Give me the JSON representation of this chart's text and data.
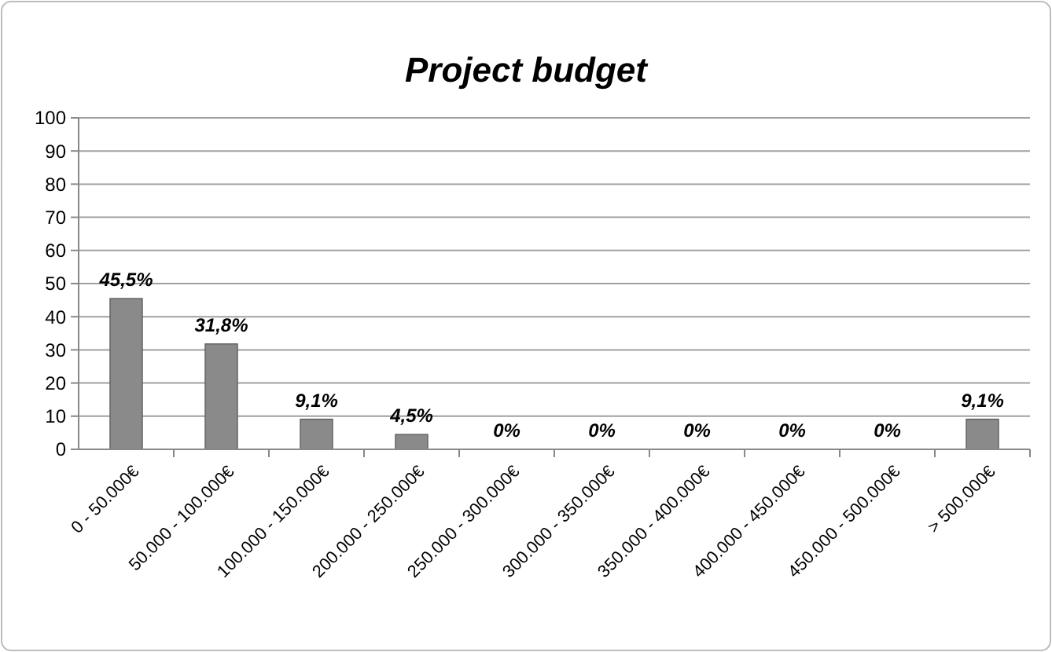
{
  "chart_data": {
    "type": "bar",
    "title": "Project budget",
    "categories": [
      "0 - 50.000€",
      "50.000 - 100.000€",
      "100.000 - 150.000€",
      "200.000 - 250.000€",
      "250.000 - 300.000€",
      "300.000 - 350.000€",
      "350.000 - 400.000€",
      "400.000 - 450.000€",
      "450.000 - 500.000€",
      "> 500.000€"
    ],
    "values": [
      45.5,
      31.8,
      9.1,
      4.5,
      0,
      0,
      0,
      0,
      0,
      9.1
    ],
    "value_labels": [
      "45,5%",
      "31,8%",
      "9,1%",
      "4,5%",
      "0%",
      "0%",
      "0%",
      "0%",
      "0%",
      "9,1%"
    ],
    "color": "#8a8a8a",
    "ylim": [
      0,
      100
    ],
    "yticks": [
      0,
      10,
      20,
      30,
      40,
      50,
      60,
      70,
      80,
      90,
      100
    ],
    "grid": "y"
  }
}
